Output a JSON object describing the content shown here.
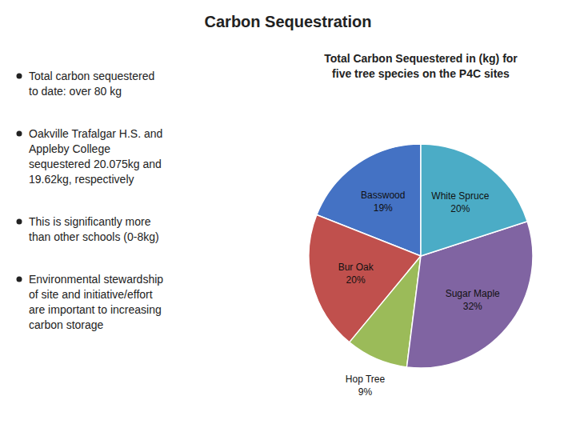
{
  "chart_data": {
    "type": "pie",
    "title": "Carbon Sequestration",
    "subtitle": "Total Carbon Sequestered in  (kg) for\nfive tree species on the P4C sites",
    "annotations": [
      "Total carbon sequestered\nto date: over 80 kg",
      "Oakville Trafalgar H.S. and\nAppleby College\nsequestered 20.075kg and\n19.62kg, respectively",
      "This is significantly more\nthan other schools (0-8kg)",
      "Environmental stewardship\nof site and initiative/effort\nare important to increasing\ncarbon storage"
    ],
    "categories": [
      "Basswood",
      "Bur Oak",
      "Hop Tree",
      "Sugar Maple",
      "White Spruce"
    ],
    "values": [
      19,
      20,
      9,
      32,
      20
    ],
    "value_labels": [
      "19%",
      "20%",
      "9%",
      "32%",
      "20%"
    ],
    "colors": [
      "#4472C4",
      "#C0504D",
      "#9BBB59",
      "#8064A2",
      "#4BACC6"
    ],
    "data_labels": true
  }
}
